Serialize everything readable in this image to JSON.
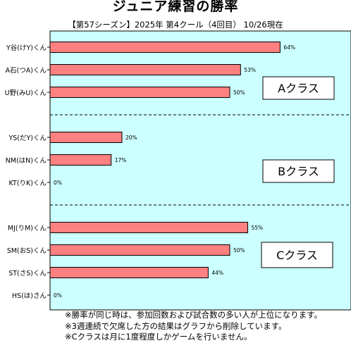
{
  "title": "ジュニア練習の勝率",
  "subtitle": "【第57シーズン】2025年 第4クール（4回目） 10/26現在",
  "colors": {
    "plot_bg": "#ccffff",
    "bar_fill": "#ff8080",
    "bar_stroke": "#000000",
    "group_box_bg": "#ffffff"
  },
  "chart_data": {
    "type": "bar",
    "orientation": "horizontal",
    "value_unit": "%",
    "xlim": [
      0,
      100
    ],
    "grid": false,
    "categories": [
      "Y谷(けY)くん",
      "A石(つA)くん",
      "U野(みU)くん",
      "YS(だY)くん",
      "NM(はN)くん",
      "KT(りK)くん",
      "MJ(りM)くん",
      "SM(おS)くん",
      "ST(さS)くん",
      "HS(ほ)さん"
    ],
    "values": [
      64,
      53,
      50,
      20,
      17,
      0,
      55,
      50,
      44,
      0
    ],
    "value_labels": [
      "64%",
      "53%",
      "50%",
      "20%",
      "17%",
      "0%",
      "55%",
      "50%",
      "44%",
      "0%"
    ],
    "groups": [
      {
        "label": "Aクラス",
        "members": [
          0,
          1,
          2
        ]
      },
      {
        "label": "Bクラス",
        "members": [
          3,
          4,
          5
        ]
      },
      {
        "label": "Cクラス",
        "members": [
          6,
          7,
          8,
          9
        ]
      }
    ]
  },
  "notes": [
    "※勝率が同じ時は、参加回数および試合数の多い人が上位になります。",
    "※3週連続で欠席した方の結果はグラフから削除しています。",
    "※Cクラスは月に1度程度しかゲームを行いません。"
  ]
}
